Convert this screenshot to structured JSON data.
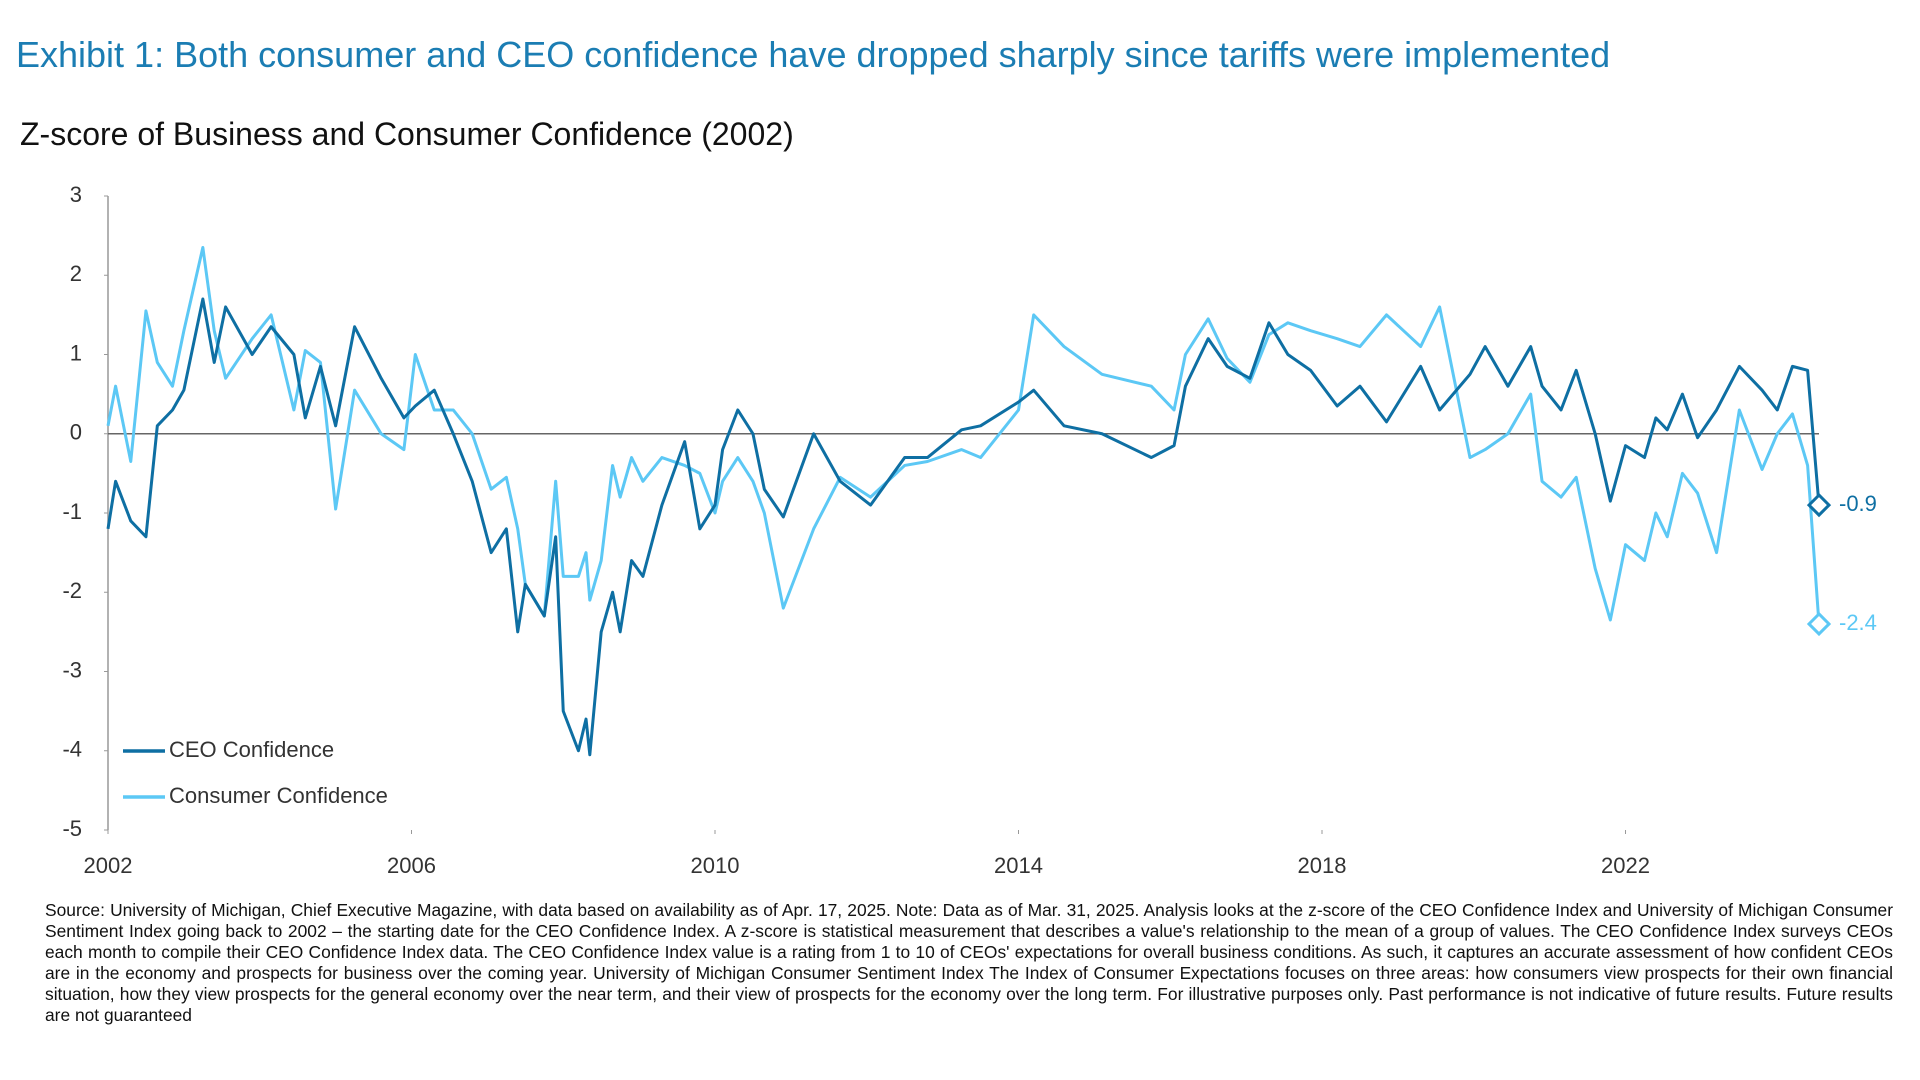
{
  "chart_data": {
    "type": "line",
    "title": "Exhibit 1: Both consumer and CEO confidence have dropped sharply since tariffs were implemented",
    "subtitle": "Z-score of Business and Consumer Confidence (2002)",
    "x": [
      2002.0,
      2002.1,
      2002.3,
      2002.5,
      2002.65,
      2002.85,
      2003.0,
      2003.25,
      2003.4,
      2003.55,
      2003.9,
      2004.15,
      2004.45,
      2004.6,
      2004.8,
      2005.0,
      2005.25,
      2005.6,
      2005.9,
      2006.05,
      2006.3,
      2006.55,
      2006.8,
      2007.05,
      2007.25,
      2007.4,
      2007.5,
      2007.75,
      2007.9,
      2008.0,
      2008.2,
      2008.3,
      2008.35,
      2008.5,
      2008.65,
      2008.75,
      2008.9,
      2009.05,
      2009.3,
      2009.6,
      2009.8,
      2010.0,
      2010.1,
      2010.3,
      2010.5,
      2010.65,
      2010.9,
      2011.3,
      2011.65,
      2012.05,
      2012.5,
      2012.8,
      2013.25,
      2013.5,
      2014.0,
      2014.2,
      2014.6,
      2015.1,
      2015.75,
      2016.05,
      2016.2,
      2016.5,
      2016.75,
      2017.05,
      2017.3,
      2017.55,
      2017.85,
      2018.2,
      2018.5,
      2018.85,
      2019.3,
      2019.55,
      2019.95,
      2020.15,
      2020.45,
      2020.75,
      2020.9,
      2021.15,
      2021.35,
      2021.6,
      2021.8,
      2022.0,
      2022.25,
      2022.4,
      2022.55,
      2022.75,
      2022.95,
      2023.2,
      2023.5,
      2023.8,
      2024.0,
      2024.2,
      2024.4,
      2024.55
    ],
    "series": [
      {
        "name": "CEO Confidence",
        "color": "#0e6fa3",
        "values": [
          -1.2,
          -0.6,
          -1.1,
          -1.3,
          0.1,
          0.3,
          0.55,
          1.7,
          0.9,
          1.6,
          1.0,
          1.35,
          1.0,
          0.2,
          0.85,
          0.1,
          1.35,
          0.7,
          0.2,
          0.35,
          0.55,
          0.0,
          -0.6,
          -1.5,
          -1.2,
          -2.5,
          -1.9,
          -2.3,
          -1.3,
          -3.5,
          -4.0,
          -3.6,
          -4.05,
          -2.5,
          -2.0,
          -2.5,
          -1.6,
          -1.8,
          -0.9,
          -0.1,
          -1.2,
          -0.9,
          -0.2,
          0.3,
          0.0,
          -0.7,
          -1.05,
          0.0,
          -0.6,
          -0.9,
          -0.3,
          -0.3,
          0.05,
          0.1,
          0.4,
          0.55,
          0.1,
          0.0,
          -0.3,
          -0.15,
          0.6,
          1.2,
          0.85,
          0.7,
          1.4,
          1.0,
          0.8,
          0.35,
          0.6,
          0.15,
          0.85,
          0.3,
          0.75,
          1.1,
          0.6,
          1.1,
          0.6,
          0.3,
          0.8,
          0.0,
          -0.85,
          -0.15,
          -0.3,
          0.2,
          0.05,
          0.5,
          -0.05,
          0.3,
          0.85,
          0.55,
          0.3,
          0.85,
          0.8,
          -0.9
        ]
      },
      {
        "name": "Consumer Confidence",
        "color": "#5cc8f5",
        "values": [
          0.1,
          0.6,
          -0.35,
          1.55,
          0.9,
          0.6,
          1.3,
          2.35,
          1.3,
          0.7,
          1.2,
          1.5,
          0.3,
          1.05,
          0.9,
          -0.95,
          0.55,
          0.0,
          -0.2,
          1.0,
          0.3,
          0.3,
          0.0,
          -0.7,
          -0.55,
          -1.2,
          -1.9,
          -2.3,
          -0.6,
          -1.8,
          -1.8,
          -1.5,
          -2.1,
          -1.6,
          -0.4,
          -0.8,
          -0.3,
          -0.6,
          -0.3,
          -0.4,
          -0.5,
          -1.0,
          -0.6,
          -0.3,
          -0.6,
          -1.0,
          -2.2,
          -1.2,
          -0.55,
          -0.8,
          -0.4,
          -0.35,
          -0.2,
          -0.3,
          0.3,
          1.5,
          1.1,
          0.75,
          0.6,
          0.3,
          1.0,
          1.45,
          0.95,
          0.65,
          1.25,
          1.4,
          1.3,
          1.2,
          1.1,
          1.5,
          1.1,
          1.6,
          -0.3,
          -0.2,
          0.0,
          0.5,
          -0.6,
          -0.8,
          -0.55,
          -1.7,
          -2.35,
          -1.4,
          -1.6,
          -1.0,
          -1.3,
          -0.5,
          -0.75,
          -1.5,
          0.3,
          -0.45,
          0.0,
          0.25,
          -0.4,
          -2.4
        ]
      }
    ],
    "xlim": [
      2002,
      2024.55
    ],
    "xticks": [
      2002,
      2006,
      2010,
      2014,
      2018,
      2022
    ],
    "ylim": [
      -5,
      3
    ],
    "yticks": [
      3,
      2,
      1,
      0,
      -1,
      -2,
      -3,
      -4,
      -5
    ],
    "legend": "lower left",
    "note": "Source: University of Michigan, Chief Executive Magazine, with data based on availability as of Apr. 17, 2025. Note: Data as of Mar. 31, 2025. Analysis looks at the z-score of the CEO Confidence Index and University of Michigan Consumer Sentiment Index going back to 2002 – the starting date for the CEO Confidence Index. A z-score is statistical measurement that describes a value's relationship to the mean of a group of values. The CEO Confidence Index surveys CEOs each month to compile their CEO Confidence Index data. The CEO Confidence Index value is a rating from 1 to 10 of CEOs' expectations for overall business conditions. As such, it captures an accurate assessment of how confident CEOs are in the economy and prospects for business over the coming year. University of Michigan Consumer Sentiment Index  The Index of Consumer Expectations focuses on three areas: how consumers view prospects for their own financial situation, how they view prospects for the general economy over the near term, and their view of prospects for the economy over the long term.  For illustrative purposes only. Past performance is not indicative of future results. Future results are not guaranteed"
  }
}
